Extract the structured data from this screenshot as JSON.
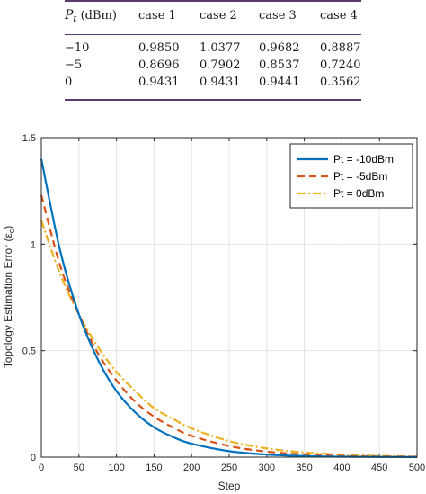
{
  "table": {
    "header": {
      "pt_symbol": "P",
      "pt_subscript": "t",
      "pt_unit": "(dBm)",
      "cases": [
        "case 1",
        "case 2",
        "case 3",
        "case 4"
      ]
    },
    "rows": [
      {
        "pt": "−10",
        "values": [
          "0.9850",
          "1.0377",
          "0.9682",
          "0.8887"
        ]
      },
      {
        "pt": "−5",
        "values": [
          "0.8696",
          "0.7902",
          "0.8537",
          "0.7240"
        ]
      },
      {
        "pt": "0",
        "values": [
          "0.9431",
          "0.9431",
          "0.9441",
          "0.3562"
        ]
      }
    ]
  },
  "chart_data": {
    "type": "line",
    "title": "",
    "xlabel": "Step",
    "ylabel": "Topology Estimation Error (ε",
    "ylabel_subscript": "c",
    "ylabel_suffix": ")",
    "xlim": [
      0,
      500
    ],
    "ylim": [
      0,
      1.5
    ],
    "xticks": [
      0,
      50,
      100,
      150,
      200,
      250,
      300,
      350,
      400,
      450,
      500
    ],
    "yticks": [
      0,
      0.5,
      1,
      1.5
    ],
    "ytick_labels": [
      "0",
      "0.5",
      "1",
      "1.5"
    ],
    "grid": true,
    "legend_position": "top-right",
    "x": [
      0,
      25,
      50,
      75,
      100,
      125,
      150,
      175,
      200,
      250,
      300,
      350,
      400,
      450,
      500
    ],
    "series": [
      {
        "name": "Pt = -10dBm",
        "color": "#0072BD",
        "style": "solid",
        "values": [
          1.4,
          0.97,
          0.67,
          0.46,
          0.31,
          0.21,
          0.14,
          0.095,
          0.063,
          0.028,
          0.012,
          0.005,
          0.002,
          0.001,
          0.0005
        ]
      },
      {
        "name": "Pt = -5dBm",
        "color": "#D95319",
        "style": "dashed",
        "values": [
          1.23,
          0.9,
          0.67,
          0.49,
          0.36,
          0.26,
          0.19,
          0.14,
          0.1,
          0.052,
          0.026,
          0.013,
          0.006,
          0.003,
          0.0015
        ]
      },
      {
        "name": "Pt = 0dBm",
        "color": "#EDB120",
        "style": "dashdot",
        "values": [
          1.11,
          0.86,
          0.67,
          0.52,
          0.4,
          0.31,
          0.23,
          0.18,
          0.135,
          0.075,
          0.041,
          0.022,
          0.012,
          0.006,
          0.003
        ]
      }
    ]
  }
}
